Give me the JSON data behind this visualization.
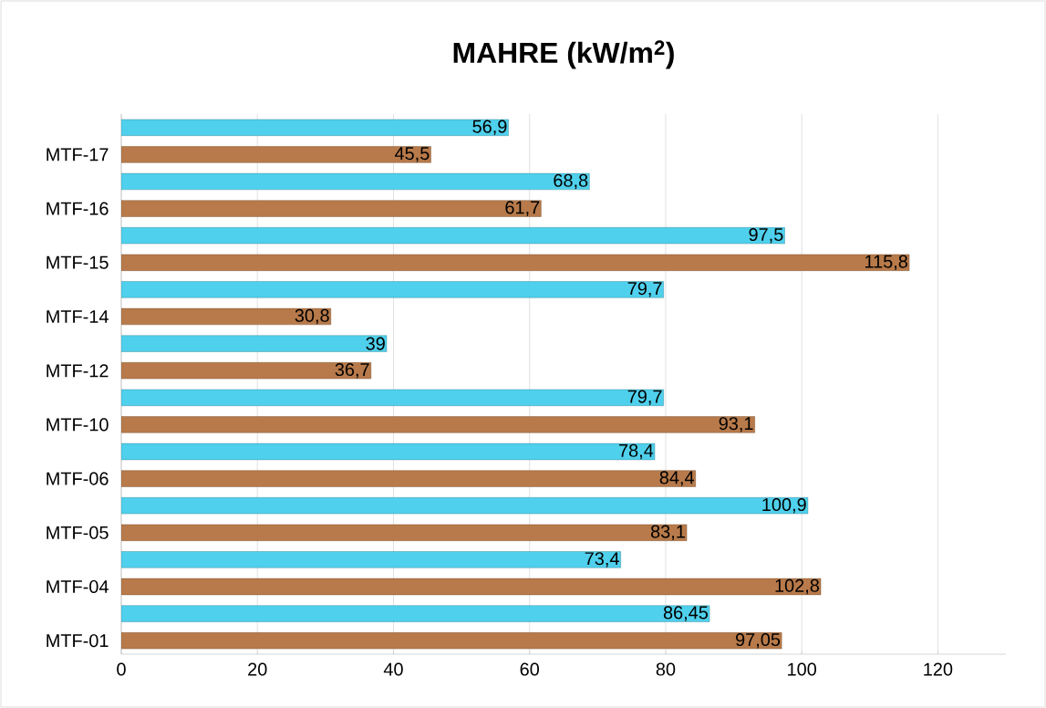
{
  "chart_data": {
    "type": "bar",
    "orientation": "horizontal",
    "title": "MAHRE (kW/m$^{2}$)",
    "categories": [
      "MTF-17",
      "MTF-16",
      "MTF-15",
      "MTF-14",
      "MTF-12",
      "MTF-10",
      "MTF-06",
      "MTF-05",
      "MTF-04",
      "MTF-01"
    ],
    "series": [
      {
        "color": "#b87a4a",
        "values": [
          45.5,
          61.7,
          115.8,
          30.8,
          36.7,
          93.1,
          84.4,
          83.1,
          102.8,
          97.05
        ],
        "value_labels": [
          "45,5",
          "61,7",
          "115,8",
          "30,8",
          "36,7",
          "93,1",
          "84,4",
          "83,1",
          "102,8",
          "97,05"
        ]
      },
      {
        "color": "#4fd0ec",
        "values": [
          56.9,
          68.8,
          97.5,
          79.7,
          39,
          79.7,
          78.4,
          100.9,
          73.4,
          86.45
        ],
        "value_labels": [
          "56,9",
          "68,8",
          "97,5",
          "79,7",
          "39",
          "79,7",
          "78,4",
          "100,9",
          "73,4",
          "86,45"
        ]
      }
    ],
    "xlim": [
      0,
      130
    ],
    "xticks": [
      0,
      20,
      40,
      60,
      80,
      100,
      120
    ],
    "grid": "x"
  }
}
